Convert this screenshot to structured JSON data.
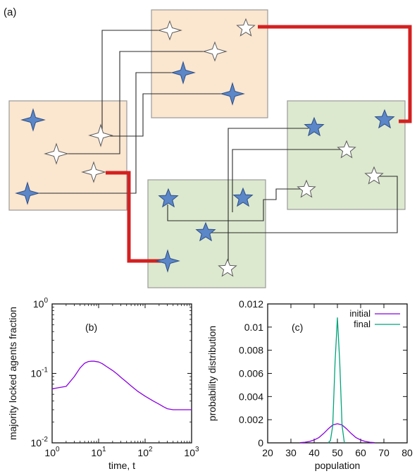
{
  "panel_a": {
    "label": "(a)"
  },
  "chart_data": [
    {
      "type": "line",
      "panel_label": "(b)",
      "xlabel": "time, t",
      "ylabel": "majority locked agents fraction",
      "xscale": "log",
      "yscale": "log",
      "xlim": [
        1,
        1000
      ],
      "ylim": [
        0.01,
        1
      ],
      "x_ticks": [
        1,
        10,
        100,
        1000
      ],
      "y_ticks": [
        0.01,
        0.1,
        1
      ],
      "x_tick_labels": [
        {
          "base": "10",
          "exp": "0"
        },
        {
          "base": "10",
          "exp": "1"
        },
        {
          "base": "10",
          "exp": "2"
        },
        {
          "base": "10",
          "exp": "3"
        }
      ],
      "y_tick_labels": [
        {
          "base": "10",
          "exp": "-2"
        },
        {
          "base": "10",
          "exp": "-1"
        },
        {
          "base": "10",
          "exp": "0"
        }
      ],
      "series": [
        {
          "color": "#8a00e0",
          "x": [
            1,
            2,
            3,
            4,
            5,
            6,
            7,
            8,
            10,
            12,
            15,
            20,
            25,
            30,
            40,
            50,
            70,
            100,
            150,
            200,
            250,
            300,
            400,
            600,
            1000
          ],
          "y": [
            0.06,
            0.065,
            0.09,
            0.12,
            0.14,
            0.148,
            0.15,
            0.15,
            0.146,
            0.138,
            0.125,
            0.11,
            0.098,
            0.088,
            0.075,
            0.066,
            0.055,
            0.047,
            0.04,
            0.036,
            0.033,
            0.031,
            0.03,
            0.03,
            0.03
          ]
        }
      ]
    },
    {
      "type": "line",
      "panel_label": "(c)",
      "xlabel": "population",
      "ylabel": "probability distribution",
      "xlim": [
        20,
        80
      ],
      "ylim": [
        0,
        0.012
      ],
      "x_ticks": [
        20,
        30,
        40,
        50,
        60,
        70,
        80
      ],
      "y_ticks": [
        0,
        0.002,
        0.004,
        0.006,
        0.008,
        0.01,
        0.012
      ],
      "x_tick_labels": [
        "20",
        "30",
        "40",
        "50",
        "60",
        "70",
        "80"
      ],
      "y_tick_labels": [
        "0",
        "0.002",
        "0.004",
        "0.006",
        "0.008",
        "0.01",
        "0.012"
      ],
      "legend_position": "top-right",
      "series": [
        {
          "name": "initial",
          "color": "#8a00e0",
          "x": [
            34,
            36,
            38,
            40,
            42,
            44,
            46,
            48,
            50,
            52,
            54,
            56,
            58,
            60,
            62,
            64,
            66
          ],
          "y": [
            2e-05,
            5e-05,
            0.00012,
            0.00025,
            0.00045,
            0.0008,
            0.0012,
            0.00155,
            0.00165,
            0.00155,
            0.0012,
            0.0008,
            0.00045,
            0.00025,
            0.00012,
            5e-05,
            2e-05
          ]
        },
        {
          "name": "final",
          "color": "#00a37a",
          "x": [
            46,
            47,
            48,
            49,
            50,
            51,
            52,
            53
          ],
          "y": [
            0,
            0.0002,
            0.0015,
            0.007,
            0.0108,
            0.007,
            0.0015,
            0
          ]
        }
      ]
    }
  ]
}
